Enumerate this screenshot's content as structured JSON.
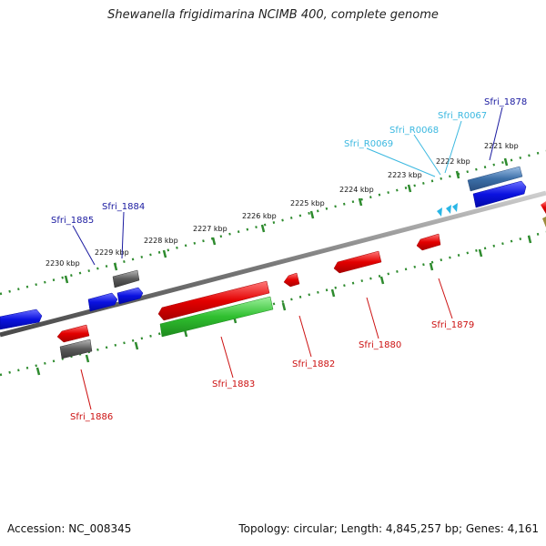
{
  "title": "Shewanella frigidimarina NCIMB 400, complete genome",
  "footer": {
    "accession": "Accession: NC_008345",
    "topology": "Topology: circular; Length: 4,845,257 bp; Genes: 4,161"
  },
  "colors": {
    "backbone": "#7f7f7f",
    "ticks": "#2e8b2e",
    "forward_gene": "#0b12e0",
    "reverse_gene": "#e00000",
    "pseudo_gene": "#5a5a5a",
    "rna_gene": "#3c6fa8",
    "green_gene": "#2fbf2f",
    "trna": "#29b6e6",
    "label_forward": "#1a1aa0",
    "label_reverse": "#cc1111",
    "label_trna": "#3bb8e0"
  },
  "kbp_labels": [
    "2221 kbp",
    "2222 kbp",
    "2223 kbp",
    "2224 kbp",
    "2225 kbp",
    "2226 kbp",
    "2227 kbp",
    "2228 kbp",
    "2229 kbp",
    "2230 kbp"
  ],
  "gene_labels": {
    "Sfri_1878": "Sfri_1878",
    "Sfri_R0067": "Sfri_R0067",
    "Sfri_R0068": "Sfri_R0068",
    "Sfri_R0069": "Sfri_R0069",
    "Sfri_1884": "Sfri_1884",
    "Sfri_1885": "Sfri_1885",
    "Sfri_1879": "Sfri_1879",
    "Sfri_1880": "Sfri_1880",
    "Sfri_1882": "Sfri_1882",
    "Sfri_1883": "Sfri_1883",
    "Sfri_1886": "Sfri_1886"
  }
}
